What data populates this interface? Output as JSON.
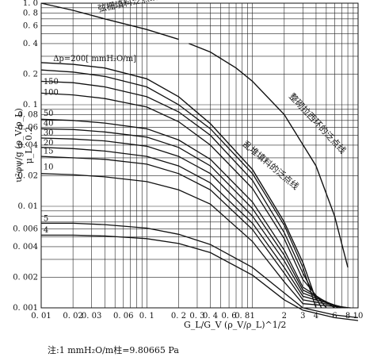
{
  "chart_data": {
    "type": "line",
    "title": "",
    "xlabel": "G_L/G_V (ρ_V/ρ_L)^1/2",
    "ylabel": "u²φψ/g (ρ_V/ρ_L) μ_L^0.2",
    "xscale": "log",
    "yscale": "log",
    "xlim": [
      0.01,
      10
    ],
    "ylim": [
      0.001,
      1.0
    ],
    "x_ticks": [
      {
        "v": 0.01,
        "t": "0. 01"
      },
      {
        "v": 0.02,
        "t": "0. 02"
      },
      {
        "v": 0.03,
        "t": "0. 03"
      },
      {
        "v": 0.06,
        "t": "0. 06"
      },
      {
        "v": 0.1,
        "t": "0. 1"
      },
      {
        "v": 0.2,
        "t": "0. 2"
      },
      {
        "v": 0.3,
        "t": "0. 3"
      },
      {
        "v": 0.4,
        "t": "0. 4"
      },
      {
        "v": 0.6,
        "t": "0. 6"
      },
      {
        "v": 0.8,
        "t": "0. 8"
      },
      {
        "v": 1,
        "t": "1"
      },
      {
        "v": 2,
        "t": "2"
      },
      {
        "v": 3,
        "t": "3"
      },
      {
        "v": 4,
        "t": "4"
      },
      {
        "v": 6,
        "t": "6"
      },
      {
        "v": 8,
        "t": "8"
      },
      {
        "v": 10,
        "t": "10"
      }
    ],
    "y_ticks": [
      {
        "v": 1.0,
        "t": "1. 0"
      },
      {
        "v": 0.8,
        "t": "0. 8"
      },
      {
        "v": 0.6,
        "t": "0. 6"
      },
      {
        "v": 0.4,
        "t": "0. 4"
      },
      {
        "v": 0.2,
        "t": "0. 2"
      },
      {
        "v": 0.1,
        "t": "0. 1"
      },
      {
        "v": 0.08,
        "t": "0. 08"
      },
      {
        "v": 0.06,
        "t": "0. 06"
      },
      {
        "v": 0.04,
        "t": "0. 04"
      },
      {
        "v": 0.02,
        "t": "0. 02"
      },
      {
        "v": 0.01,
        "t": "0. 01"
      },
      {
        "v": 0.006,
        "t": "0. 006"
      },
      {
        "v": 0.004,
        "t": "0. 004"
      },
      {
        "v": 0.002,
        "t": "0. 002"
      },
      {
        "v": 0.001,
        "t": "0. 001"
      }
    ],
    "series": [
      {
        "name": "Δp=200[mmH₂O/m]",
        "x": [
          0.01,
          0.02,
          0.04,
          0.1,
          0.2,
          0.4,
          1,
          2,
          3,
          4
        ],
        "y": [
          0.22,
          0.21,
          0.19,
          0.15,
          0.1,
          0.058,
          0.021,
          0.0065,
          0.0025,
          0.001
        ]
      },
      {
        "name": "150",
        "x": [
          0.01,
          0.02,
          0.04,
          0.1,
          0.2,
          0.4,
          1,
          2,
          3,
          4.5
        ],
        "y": [
          0.17,
          0.165,
          0.15,
          0.12,
          0.085,
          0.05,
          0.018,
          0.0055,
          0.0022,
          0.001
        ]
      },
      {
        "name": "100",
        "x": [
          0.01,
          0.02,
          0.04,
          0.1,
          0.2,
          0.4,
          1,
          2,
          3,
          5
        ],
        "y": [
          0.13,
          0.125,
          0.115,
          0.095,
          0.068,
          0.04,
          0.015,
          0.0048,
          0.0019,
          0.001
        ]
      },
      {
        "name": "50",
        "x": [
          0.01,
          0.02,
          0.04,
          0.1,
          0.2,
          0.4,
          1,
          2,
          3,
          6
        ],
        "y": [
          0.072,
          0.07,
          0.066,
          0.058,
          0.045,
          0.029,
          0.011,
          0.0037,
          0.0016,
          0.001
        ]
      },
      {
        "name": "40",
        "x": [
          0.01,
          0.02,
          0.04,
          0.1,
          0.2,
          0.4,
          1,
          2,
          3,
          6.5
        ],
        "y": [
          0.058,
          0.057,
          0.054,
          0.048,
          0.038,
          0.025,
          0.0095,
          0.0033,
          0.0015,
          0.001
        ]
      },
      {
        "name": "30",
        "x": [
          0.01,
          0.02,
          0.04,
          0.1,
          0.2,
          0.4,
          1,
          2,
          3,
          7
        ],
        "y": [
          0.047,
          0.046,
          0.044,
          0.039,
          0.031,
          0.021,
          0.008,
          0.0029,
          0.0014,
          0.001
        ]
      },
      {
        "name": "20",
        "x": [
          0.01,
          0.02,
          0.04,
          0.1,
          0.2,
          0.4,
          1,
          2,
          3,
          7.5
        ],
        "y": [
          0.038,
          0.037,
          0.035,
          0.031,
          0.025,
          0.017,
          0.0068,
          0.0025,
          0.0013,
          0.001
        ]
      },
      {
        "name": "15",
        "x": [
          0.01,
          0.02,
          0.04,
          0.1,
          0.2,
          0.4,
          1,
          2,
          3,
          8
        ],
        "y": [
          0.031,
          0.03,
          0.029,
          0.026,
          0.021,
          0.0145,
          0.0059,
          0.0022,
          0.0012,
          0.001
        ]
      },
      {
        "name": "10",
        "x": [
          0.01,
          0.02,
          0.04,
          0.1,
          0.2,
          0.4,
          1,
          2,
          3,
          8.5
        ],
        "y": [
          0.021,
          0.0205,
          0.0195,
          0.0175,
          0.0145,
          0.0105,
          0.0045,
          0.0018,
          0.0011,
          0.001
        ]
      },
      {
        "name": "5",
        "x": [
          0.01,
          0.02,
          0.04,
          0.1,
          0.2,
          0.4,
          1,
          2,
          3,
          6,
          10
        ],
        "y": [
          0.0068,
          0.0068,
          0.0066,
          0.0061,
          0.0053,
          0.0042,
          0.0025,
          0.0014,
          0.001,
          0.00085,
          0.0008
        ]
      },
      {
        "name": "4",
        "x": [
          0.01,
          0.02,
          0.04,
          0.1,
          0.2,
          0.4,
          1,
          2,
          3,
          6,
          10
        ],
        "y": [
          0.0052,
          0.0052,
          0.0051,
          0.0048,
          0.0043,
          0.0035,
          0.0021,
          0.0012,
          0.00095,
          0.0008,
          0.00075
        ]
      }
    ],
    "boundaries": [
      {
        "name": "弦栅填料泛点线",
        "x": [
          0.01,
          0.02,
          0.04,
          0.1,
          0.2
        ],
        "y": [
          1.0,
          0.85,
          0.7,
          0.55,
          0.44
        ]
      },
      {
        "name": "整砌拉西环的泛点线",
        "x": [
          0.25,
          0.4,
          0.7,
          1,
          2,
          4,
          6,
          8
        ],
        "y": [
          0.4,
          0.33,
          0.23,
          0.17,
          0.08,
          0.025,
          0.008,
          0.0025
        ]
      },
      {
        "name": "乱堆填料的泛点线",
        "x": [
          0.01,
          0.02,
          0.04,
          0.1,
          0.2,
          0.4,
          1,
          2,
          3,
          4
        ],
        "y": [
          0.26,
          0.25,
          0.23,
          0.18,
          0.12,
          0.065,
          0.023,
          0.007,
          0.0028,
          0.0012
        ]
      }
    ],
    "curve_labels": [
      {
        "t": "Δp=200[ mmH₂O/m]",
        "x": 0.013,
        "y": 0.27
      },
      {
        "t": "150",
        "x": 0.0105,
        "y": 0.16
      },
      {
        "t": "100",
        "x": 0.0105,
        "y": 0.125
      },
      {
        "t": "50",
        "x": 0.0105,
        "y": 0.078
      },
      {
        "t": "40",
        "x": 0.0105,
        "y": 0.062
      },
      {
        "t": "30",
        "x": 0.0105,
        "y": 0.05
      },
      {
        "t": "20",
        "x": 0.0105,
        "y": 0.04
      },
      {
        "t": "15",
        "x": 0.0105,
        "y": 0.033
      },
      {
        "t": "10",
        "x": 0.0105,
        "y": 0.023
      },
      {
        "t": "5",
        "x": 0.0105,
        "y": 0.0072
      },
      {
        "t": "4",
        "x": 0.0105,
        "y": 0.0055
      }
    ],
    "grid": true,
    "legend": "none"
  },
  "note": "注:1 mmH₂O/m柱=9.80665 Pa",
  "xlabel_text": "G_L/G_V (ρ_V/ρ_L)^1/2",
  "ylabel_text": "u²φψ/g (ρ_V/ρ_L) μ_L^0.2"
}
